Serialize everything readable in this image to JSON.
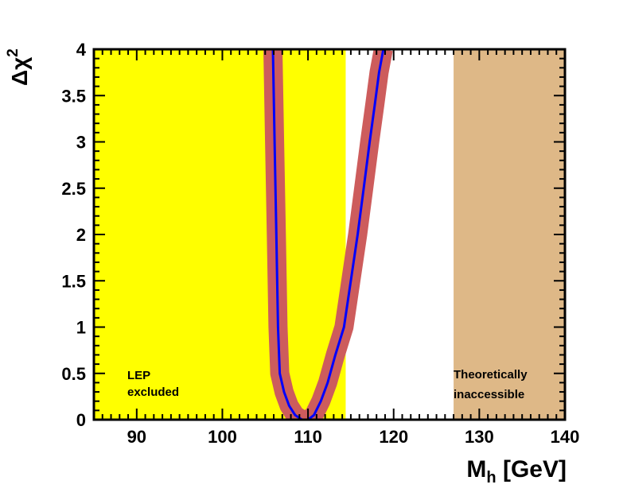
{
  "chart_data": {
    "type": "line",
    "xlabel_main": "M",
    "xlabel_sub": "h",
    "xlabel_unit": " [GeV]",
    "ylabel_symbol": "Δχ",
    "ylabel_sup": "2",
    "xlim": [
      85,
      140
    ],
    "ylim": [
      0,
      4
    ],
    "x_ticks": [
      90,
      100,
      110,
      120,
      130,
      140
    ],
    "x_tick_labels": [
      "90",
      "100",
      "110",
      "120",
      "130",
      "140"
    ],
    "y_ticks": [
      0,
      0.5,
      1,
      1.5,
      2,
      2.5,
      3,
      3.5,
      4
    ],
    "y_tick_labels": [
      "0",
      "0.5",
      "1",
      "1.5",
      "2",
      "2.5",
      "3",
      "3.5",
      "4"
    ],
    "regions": [
      {
        "name": "lep-excluded",
        "x_range": [
          85,
          114.4
        ],
        "color": "#ffff00",
        "label_lines": [
          "LEP",
          "excluded"
        ]
      },
      {
        "name": "theoretically-inaccessible",
        "x_range": [
          127,
          140
        ],
        "color": "#deb887",
        "label_lines": [
          "Theoretically",
          "inaccessible"
        ]
      }
    ],
    "series": [
      {
        "name": "delta-chi2",
        "line_color": "#0000ff",
        "band_color": "#cd5c5c",
        "x": [
          105.9,
          106.1,
          106.3,
          106.5,
          106.7,
          107.2,
          107.8,
          108.5,
          109.3,
          110.0,
          110.7,
          111.5,
          112.3,
          113.2,
          114.2,
          115.0,
          115.8,
          116.5,
          117.2,
          117.8,
          118.3,
          118.8
        ],
        "y": [
          4.0,
          3.0,
          2.0,
          1.0,
          0.5,
          0.3,
          0.15,
          0.05,
          0.0,
          0.0,
          0.05,
          0.2,
          0.4,
          0.7,
          1.0,
          1.5,
          2.0,
          2.5,
          3.0,
          3.4,
          3.75,
          4.0
        ]
      }
    ]
  }
}
